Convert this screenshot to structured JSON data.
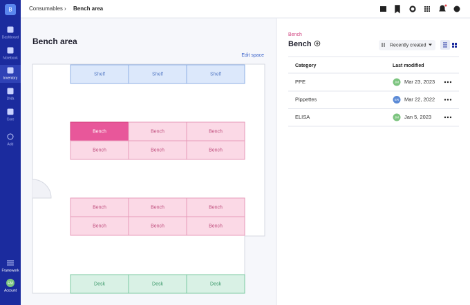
{
  "sidebar": {
    "logo": "B",
    "nav": [
      "Dashboard",
      "Notebook",
      "Inventory",
      "DNA",
      "Core",
      "Add"
    ],
    "framework": "Framework",
    "account": "Account",
    "avatar": "EM"
  },
  "breadcrumb": [
    "Consumables",
    "Bench area"
  ],
  "space": {
    "title": "Bench area",
    "action": "Edit space",
    "rows": [
      [
        "Shelf",
        "Shelf",
        "Shelf"
      ],
      [
        "Bench",
        "Bench",
        "Bench"
      ],
      [
        "Bench",
        "Bench",
        "Bench"
      ],
      [
        "Bench",
        "Bench",
        "Bench"
      ],
      [
        "Bench",
        "Bench",
        "Bench"
      ],
      [
        "Desk",
        "Desk",
        "Desk"
      ]
    ]
  },
  "detail": {
    "overline": "Bench",
    "title": "Bench",
    "sort": "Recently created",
    "columns": [
      "Category",
      "Last modified"
    ],
    "rows": [
      {
        "category": "PPE",
        "initials": "JM",
        "modified": "Mar 23, 2023"
      },
      {
        "category": "Pippettes",
        "initials": "ER",
        "modified": "Mar 22, 2022"
      },
      {
        "category": "ELISA",
        "initials": "JM",
        "modified": "Jan 5, 2023"
      }
    ]
  }
}
